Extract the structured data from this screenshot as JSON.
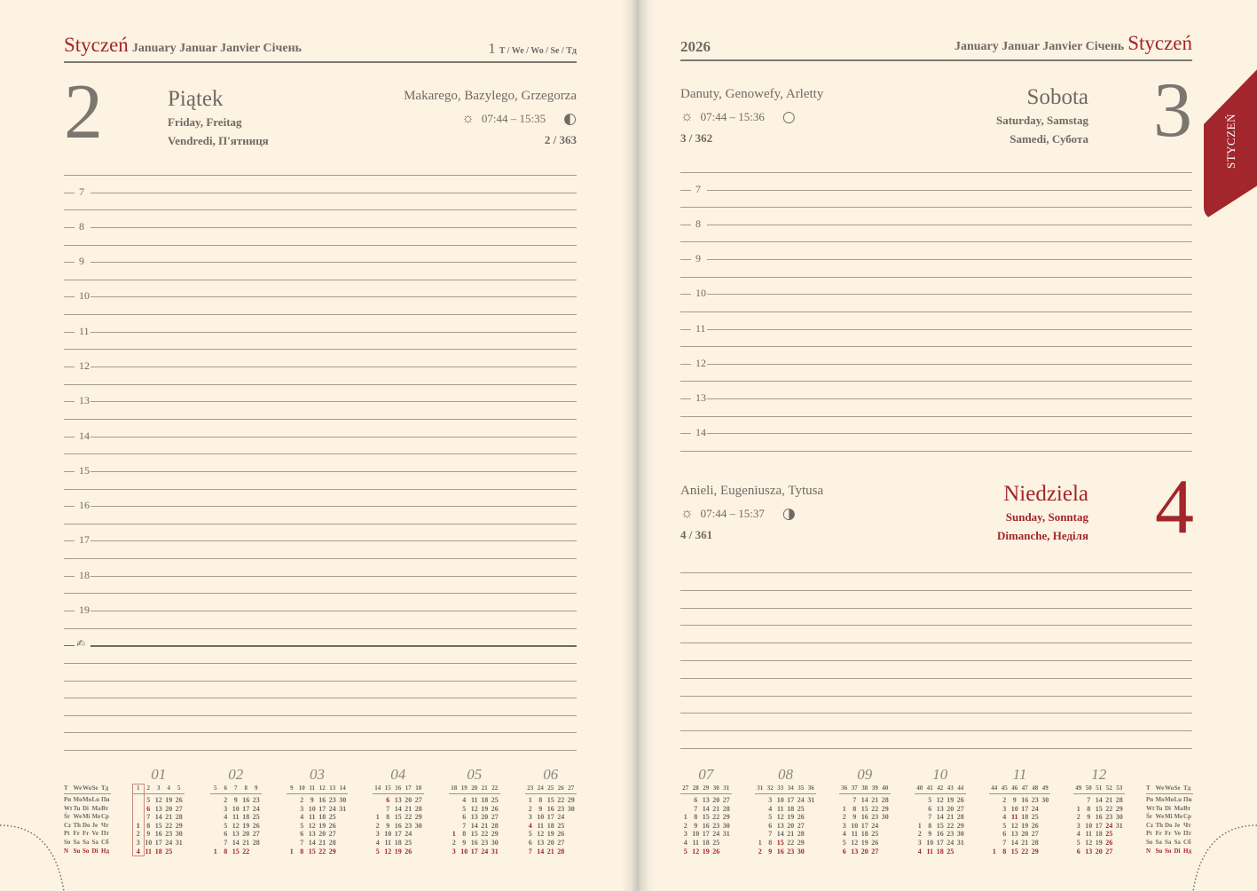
{
  "left_page": {
    "month_pl": "Styczeń",
    "month_other": "January Januar Janvier Січень",
    "week_no": "1",
    "week_labels": "T / We / Wo / Se / Тд",
    "day": {
      "number": "2",
      "name_pl": "Piątek",
      "name_en_de": "Friday, Freitag",
      "name_fr_uk": "Vendredi, П'ятниця",
      "namedays": "Makarego, Bazylego, Grzegorza",
      "sun_times": "07:44 – 15:35",
      "moon_phase": "◐",
      "day_of_year": "2 / 363"
    },
    "hours": [
      "7",
      "8",
      "9",
      "10",
      "11",
      "12",
      "13",
      "14",
      "15",
      "16",
      "17",
      "18",
      "19"
    ],
    "notes_icon": "pen-icon"
  },
  "right_page": {
    "year": "2026",
    "month_other": "January Januar Janvier Січень",
    "month_pl": "Styczeń",
    "tab_label": "STYCZEŃ",
    "day1": {
      "number": "3",
      "name_pl": "Sobota",
      "name_en_de": "Saturday, Samstag",
      "name_fr_uk": "Samedi, Субота",
      "namedays": "Danuty, Genowefy, Arletty",
      "sun_times": "07:44 – 15:36",
      "moon_phase": "○",
      "day_of_year": "3 / 362"
    },
    "hours": [
      "7",
      "8",
      "9",
      "10",
      "11",
      "12",
      "13",
      "14"
    ],
    "day2": {
      "number": "4",
      "name_pl": "Niedziela",
      "name_en_de": "Sunday, Sonntag",
      "name_fr_uk": "Dimanche, Неділя",
      "namedays": "Anieli, Eugeniusza, Tytusa",
      "sun_times": "07:44 – 15:37",
      "moon_phase": "◑",
      "day_of_year": "4 / 361"
    }
  },
  "colors": {
    "accent": "#a2262c",
    "paper": "#fdf3e3",
    "text": "#6f6a64"
  },
  "legend": {
    "header": [
      "T",
      "We",
      "Wo",
      "Se",
      "Тд"
    ],
    "rows": [
      [
        "Pn",
        "Mo",
        "Mo",
        "Lu",
        "Пн"
      ],
      [
        "Wt",
        "Tu",
        "Di",
        "Ma",
        "Вт"
      ],
      [
        "Śr",
        "We",
        "Mi",
        "Me",
        "Ср"
      ],
      [
        "Cz",
        "Th",
        "Do",
        "Je",
        "Чт"
      ],
      [
        "Pt",
        "Fr",
        "Fr",
        "Ve",
        "Пт"
      ],
      [
        "So",
        "Sa",
        "Sa",
        "Sa",
        "Сб"
      ],
      [
        "N",
        "Su",
        "So",
        "Di",
        "Нд"
      ]
    ]
  },
  "mini_calendars": [
    {
      "title": "01",
      "current_week": 1,
      "holidays": [
        1,
        6
      ],
      "weeks": [
        {
          "no": 1,
          "days": [
            null,
            null,
            null,
            1,
            2,
            3,
            4
          ]
        },
        {
          "no": 2,
          "days": [
            5,
            6,
            7,
            8,
            9,
            10,
            11
          ]
        },
        {
          "no": 3,
          "days": [
            12,
            13,
            14,
            15,
            16,
            17,
            18
          ]
        },
        {
          "no": 4,
          "days": [
            19,
            20,
            21,
            22,
            23,
            24,
            25
          ]
        },
        {
          "no": 5,
          "days": [
            26,
            27,
            28,
            29,
            30,
            31,
            null
          ]
        }
      ]
    },
    {
      "title": "02",
      "holidays": [],
      "weeks": [
        {
          "no": 5,
          "days": [
            null,
            null,
            null,
            null,
            null,
            null,
            1
          ]
        },
        {
          "no": 6,
          "days": [
            2,
            3,
            4,
            5,
            6,
            7,
            8
          ]
        },
        {
          "no": 7,
          "days": [
            9,
            10,
            11,
            12,
            13,
            14,
            15
          ]
        },
        {
          "no": 8,
          "days": [
            16,
            17,
            18,
            19,
            20,
            21,
            22
          ]
        },
        {
          "no": 9,
          "days": [
            23,
            24,
            25,
            26,
            27,
            28,
            null
          ]
        }
      ]
    },
    {
      "title": "03",
      "holidays": [],
      "weeks": [
        {
          "no": 9,
          "days": [
            null,
            null,
            null,
            null,
            null,
            null,
            1
          ]
        },
        {
          "no": 10,
          "days": [
            2,
            3,
            4,
            5,
            6,
            7,
            8
          ]
        },
        {
          "no": 11,
          "days": [
            9,
            10,
            11,
            12,
            13,
            14,
            15
          ]
        },
        {
          "no": 12,
          "days": [
            16,
            17,
            18,
            19,
            20,
            21,
            22
          ]
        },
        {
          "no": 13,
          "days": [
            23,
            24,
            25,
            26,
            27,
            28,
            29
          ]
        },
        {
          "no": 14,
          "days": [
            30,
            31,
            null,
            null,
            null,
            null,
            null
          ]
        }
      ]
    },
    {
      "title": "04",
      "holidays": [
        5,
        6
      ],
      "weeks": [
        {
          "no": 14,
          "days": [
            null,
            null,
            1,
            2,
            3,
            4,
            5
          ]
        },
        {
          "no": 15,
          "days": [
            6,
            7,
            8,
            9,
            10,
            11,
            12
          ]
        },
        {
          "no": 16,
          "days": [
            13,
            14,
            15,
            16,
            17,
            18,
            19
          ]
        },
        {
          "no": 17,
          "days": [
            20,
            21,
            22,
            23,
            24,
            25,
            26
          ]
        },
        {
          "no": 18,
          "days": [
            27,
            28,
            29,
            30,
            null,
            null,
            null
          ]
        }
      ]
    },
    {
      "title": "05",
      "holidays": [
        1,
        3
      ],
      "weeks": [
        {
          "no": 18,
          "days": [
            null,
            null,
            null,
            null,
            1,
            2,
            3
          ]
        },
        {
          "no": 19,
          "days": [
            4,
            5,
            6,
            7,
            8,
            9,
            10
          ]
        },
        {
          "no": 20,
          "days": [
            11,
            12,
            13,
            14,
            15,
            16,
            17
          ]
        },
        {
          "no": 21,
          "days": [
            18,
            19,
            20,
            21,
            22,
            23,
            24
          ]
        },
        {
          "no": 22,
          "days": [
            25,
            26,
            27,
            28,
            29,
            30,
            31
          ]
        }
      ]
    },
    {
      "title": "06",
      "holidays": [
        4
      ],
      "weeks": [
        {
          "no": 23,
          "days": [
            1,
            2,
            3,
            4,
            5,
            6,
            7
          ]
        },
        {
          "no": 24,
          "days": [
            8,
            9,
            10,
            11,
            12,
            13,
            14
          ]
        },
        {
          "no": 25,
          "days": [
            15,
            16,
            17,
            18,
            19,
            20,
            21
          ]
        },
        {
          "no": 26,
          "days": [
            22,
            23,
            24,
            25,
            26,
            27,
            28
          ]
        },
        {
          "no": 27,
          "days": [
            29,
            30,
            null,
            null,
            null,
            null,
            null
          ]
        }
      ]
    },
    {
      "title": "07",
      "holidays": [],
      "weeks": [
        {
          "no": 27,
          "days": [
            null,
            null,
            1,
            2,
            3,
            4,
            5
          ]
        },
        {
          "no": 28,
          "days": [
            6,
            7,
            8,
            9,
            10,
            11,
            12
          ]
        },
        {
          "no": 29,
          "days": [
            13,
            14,
            15,
            16,
            17,
            18,
            19
          ]
        },
        {
          "no": 30,
          "days": [
            20,
            21,
            22,
            23,
            24,
            25,
            26
          ]
        },
        {
          "no": 31,
          "days": [
            27,
            28,
            29,
            30,
            31,
            null,
            null
          ]
        }
      ]
    },
    {
      "title": "08",
      "holidays": [
        15
      ],
      "weeks": [
        {
          "no": 31,
          "days": [
            null,
            null,
            null,
            null,
            null,
            1,
            2
          ]
        },
        {
          "no": 32,
          "days": [
            3,
            4,
            5,
            6,
            7,
            8,
            9
          ]
        },
        {
          "no": 33,
          "days": [
            10,
            11,
            12,
            13,
            14,
            15,
            16
          ]
        },
        {
          "no": 34,
          "days": [
            17,
            18,
            19,
            20,
            21,
            22,
            23
          ]
        },
        {
          "no": 35,
          "days": [
            24,
            25,
            26,
            27,
            28,
            29,
            30
          ]
        },
        {
          "no": 36,
          "days": [
            31,
            null,
            null,
            null,
            null,
            null,
            null
          ]
        }
      ]
    },
    {
      "title": "09",
      "holidays": [],
      "weeks": [
        {
          "no": 36,
          "days": [
            null,
            1,
            2,
            3,
            4,
            5,
            6
          ]
        },
        {
          "no": 37,
          "days": [
            7,
            8,
            9,
            10,
            11,
            12,
            13
          ]
        },
        {
          "no": 38,
          "days": [
            14,
            15,
            16,
            17,
            18,
            19,
            20
          ]
        },
        {
          "no": 39,
          "days": [
            21,
            22,
            23,
            24,
            25,
            26,
            27
          ]
        },
        {
          "no": 40,
          "days": [
            28,
            29,
            30,
            null,
            null,
            null,
            null
          ]
        }
      ]
    },
    {
      "title": "10",
      "holidays": [],
      "weeks": [
        {
          "no": 40,
          "days": [
            null,
            null,
            null,
            1,
            2,
            3,
            4
          ]
        },
        {
          "no": 41,
          "days": [
            5,
            6,
            7,
            8,
            9,
            10,
            11
          ]
        },
        {
          "no": 42,
          "days": [
            12,
            13,
            14,
            15,
            16,
            17,
            18
          ]
        },
        {
          "no": 43,
          "days": [
            19,
            20,
            21,
            22,
            23,
            24,
            25
          ]
        },
        {
          "no": 44,
          "days": [
            26,
            27,
            28,
            29,
            30,
            31,
            null
          ]
        }
      ]
    },
    {
      "title": "11",
      "holidays": [
        1,
        11
      ],
      "weeks": [
        {
          "no": 44,
          "days": [
            null,
            null,
            null,
            null,
            null,
            null,
            1
          ]
        },
        {
          "no": 45,
          "days": [
            2,
            3,
            4,
            5,
            6,
            7,
            8
          ]
        },
        {
          "no": 46,
          "days": [
            9,
            10,
            11,
            12,
            13,
            14,
            15
          ]
        },
        {
          "no": 47,
          "days": [
            16,
            17,
            18,
            19,
            20,
            21,
            22
          ]
        },
        {
          "no": 48,
          "days": [
            23,
            24,
            25,
            26,
            27,
            28,
            29
          ]
        },
        {
          "no": 49,
          "days": [
            30,
            null,
            null,
            null,
            null,
            null,
            null
          ]
        }
      ]
    },
    {
      "title": "12",
      "holidays": [
        24,
        25,
        26
      ],
      "weeks": [
        {
          "no": 49,
          "days": [
            null,
            1,
            2,
            3,
            4,
            5,
            6
          ]
        },
        {
          "no": 50,
          "days": [
            7,
            8,
            9,
            10,
            11,
            12,
            13
          ]
        },
        {
          "no": 51,
          "days": [
            14,
            15,
            16,
            17,
            18,
            19,
            20
          ]
        },
        {
          "no": 52,
          "days": [
            21,
            22,
            23,
            24,
            25,
            26,
            27
          ]
        },
        {
          "no": 53,
          "days": [
            28,
            29,
            30,
            31,
            null,
            null,
            null
          ]
        }
      ]
    }
  ]
}
